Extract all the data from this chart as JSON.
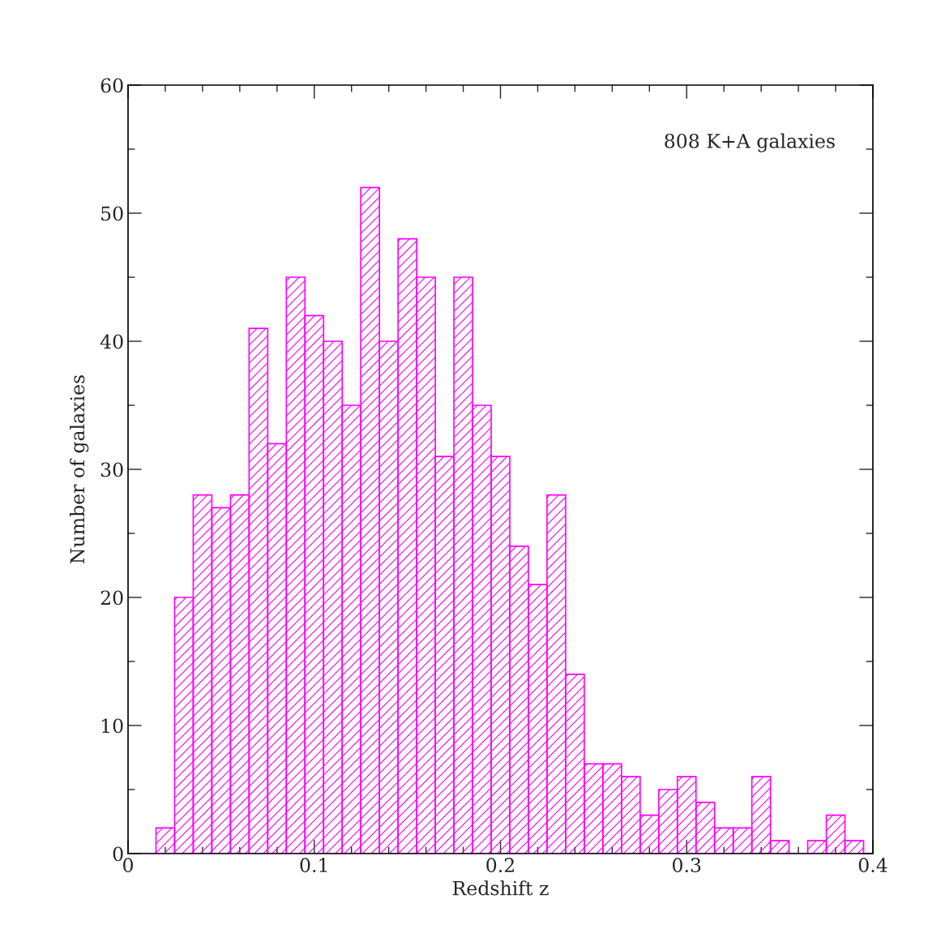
{
  "chart_data": {
    "type": "histogram",
    "xlabel": "Redshift z",
    "ylabel": "Number of galaxies",
    "annotations": [
      "808 K+A galaxies"
    ],
    "bins": [
      0.005,
      0.015,
      0.025,
      0.035,
      0.045,
      0.055,
      0.065,
      0.075,
      0.085,
      0.095,
      0.105,
      0.115,
      0.125,
      0.135,
      0.145,
      0.155,
      0.165,
      0.175,
      0.185,
      0.195,
      0.205,
      0.215,
      0.225,
      0.235,
      0.245,
      0.255,
      0.265,
      0.275,
      0.285,
      0.295,
      0.305,
      0.315,
      0.325,
      0.335,
      0.345,
      0.355,
      0.365,
      0.375,
      0.385,
      0.395
    ],
    "values": [
      0,
      2,
      20,
      28,
      27,
      28,
      41,
      32,
      45,
      42,
      40,
      35,
      52,
      40,
      48,
      45,
      31,
      45,
      35,
      31,
      24,
      21,
      28,
      14,
      7,
      7,
      6,
      3,
      5,
      6,
      4,
      2,
      2,
      6,
      1,
      0,
      1,
      3,
      1
    ],
    "color": "#ff00ff",
    "xlim": [
      0,
      0.4
    ],
    "xticks": [
      0,
      0.1,
      0.2,
      0.3,
      0.4
    ],
    "ylim": [
      0,
      60
    ],
    "yticks": [
      0,
      10,
      20,
      30,
      40,
      50,
      60
    ],
    "grid": false,
    "legend": false
  }
}
